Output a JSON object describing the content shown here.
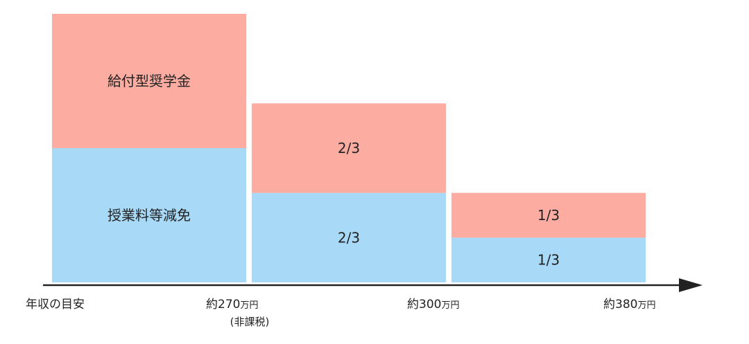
{
  "chart_data": {
    "type": "bar",
    "stacked": true,
    "x_axis_title": "年収の目安",
    "categories": [
      {
        "main": "約270",
        "unit": "万円",
        "note": "(非課税)"
      },
      {
        "main": "約300",
        "unit": "万円",
        "note": ""
      },
      {
        "main": "約380",
        "unit": "万円",
        "note": ""
      }
    ],
    "series": [
      {
        "key": "tuition",
        "color": "#a8d9f6",
        "values": [
          1,
          0.6667,
          0.3333
        ],
        "labels": [
          "授業料等減免",
          "2/3",
          "1/3"
        ]
      },
      {
        "key": "scholarship",
        "color": "#fcaca0",
        "values": [
          1,
          0.6667,
          0.3333
        ],
        "labels": [
          "給付型奨学金",
          "2/3",
          "1/3"
        ]
      }
    ],
    "ylim": [
      0,
      2
    ],
    "grid": false,
    "legend": "none"
  }
}
